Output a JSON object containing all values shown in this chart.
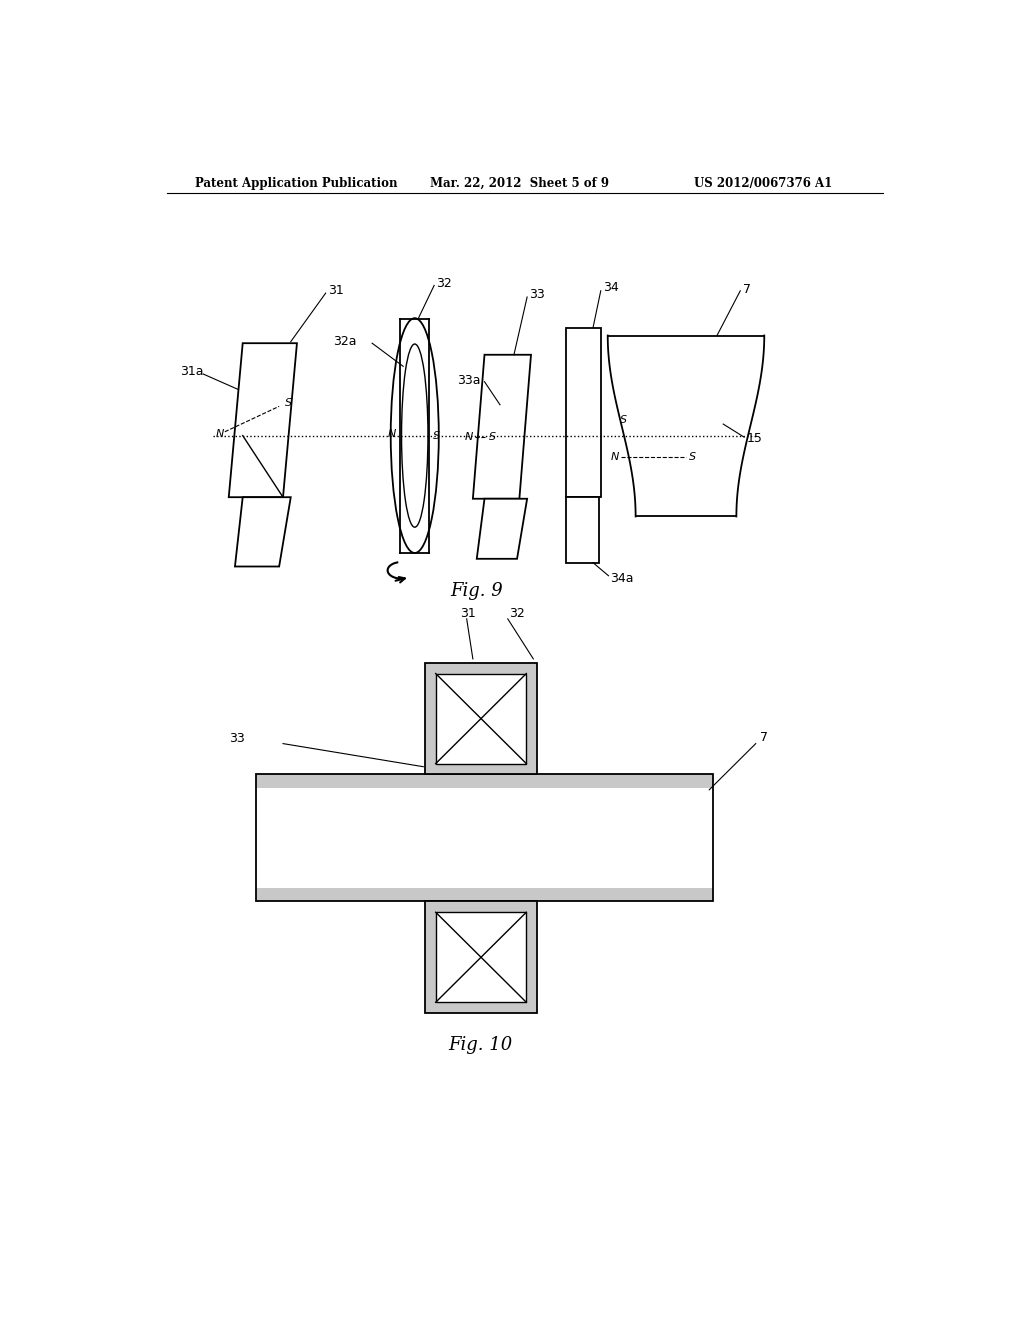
{
  "background_color": "#ffffff",
  "header_left": "Patent Application Publication",
  "header_center": "Mar. 22, 2012  Sheet 5 of 9",
  "header_right": "US 2012/0067376 A1",
  "fig9_label": "Fig. 9",
  "fig10_label": "Fig. 10",
  "line_color": "#000000",
  "gray_fill": "#c8c8c8",
  "white_fill": "#ffffff"
}
